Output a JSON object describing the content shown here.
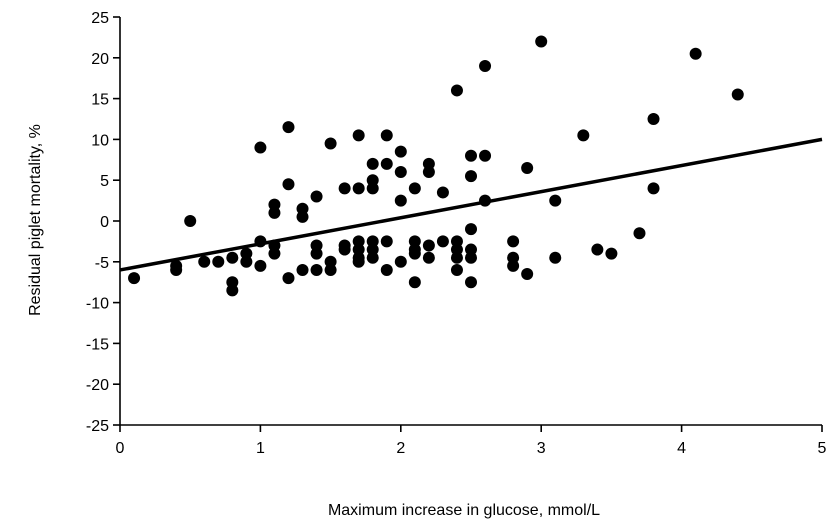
{
  "chart_data": {
    "type": "scatter",
    "title": "",
    "xlabel": "Maximum increase in glucose, mmol/L",
    "ylabel": "Residual piglet mortality, %",
    "xlim": [
      0,
      5
    ],
    "ylim": [
      -25,
      25
    ],
    "x_ticks": [
      0,
      1,
      2,
      3,
      4,
      5
    ],
    "y_ticks": [
      25,
      20,
      15,
      10,
      5,
      0,
      -5,
      -10,
      -15,
      -20,
      -25
    ],
    "grid": false,
    "legend": "none",
    "point_color": "#000000",
    "series": [
      {
        "points": [
          {
            "x": 0.1,
            "y": -7
          },
          {
            "x": 0.4,
            "y": -6
          },
          {
            "x": 0.4,
            "y": -5.5
          },
          {
            "x": 0.5,
            "y": 0
          },
          {
            "x": 0.6,
            "y": -5
          },
          {
            "x": 0.7,
            "y": -5
          },
          {
            "x": 0.8,
            "y": -4.5
          },
          {
            "x": 0.8,
            "y": -7.5
          },
          {
            "x": 0.8,
            "y": -8.5
          },
          {
            "x": 0.9,
            "y": -4
          },
          {
            "x": 0.9,
            "y": -5
          },
          {
            "x": 1.0,
            "y": 9
          },
          {
            "x": 1.0,
            "y": -2.5
          },
          {
            "x": 1.0,
            "y": -5.5
          },
          {
            "x": 1.1,
            "y": 2
          },
          {
            "x": 1.1,
            "y": 1
          },
          {
            "x": 1.1,
            "y": -3
          },
          {
            "x": 1.1,
            "y": -4
          },
          {
            "x": 1.2,
            "y": 11.5
          },
          {
            "x": 1.2,
            "y": 4.5
          },
          {
            "x": 1.2,
            "y": -7
          },
          {
            "x": 1.3,
            "y": 1.5
          },
          {
            "x": 1.3,
            "y": 0.5
          },
          {
            "x": 1.3,
            "y": -6
          },
          {
            "x": 1.4,
            "y": 3
          },
          {
            "x": 1.4,
            "y": -3
          },
          {
            "x": 1.4,
            "y": -4
          },
          {
            "x": 1.4,
            "y": -6
          },
          {
            "x": 1.5,
            "y": 9.5
          },
          {
            "x": 1.5,
            "y": -5
          },
          {
            "x": 1.5,
            "y": -6
          },
          {
            "x": 1.6,
            "y": 4
          },
          {
            "x": 1.6,
            "y": -3
          },
          {
            "x": 1.6,
            "y": -3.5
          },
          {
            "x": 1.7,
            "y": 10.5
          },
          {
            "x": 1.7,
            "y": 4
          },
          {
            "x": 1.7,
            "y": -2.5
          },
          {
            "x": 1.7,
            "y": -3.5
          },
          {
            "x": 1.7,
            "y": -4.5
          },
          {
            "x": 1.7,
            "y": -5
          },
          {
            "x": 1.8,
            "y": 7
          },
          {
            "x": 1.8,
            "y": 5
          },
          {
            "x": 1.8,
            "y": 4
          },
          {
            "x": 1.8,
            "y": -2.5
          },
          {
            "x": 1.8,
            "y": -3.5
          },
          {
            "x": 1.8,
            "y": -4.5
          },
          {
            "x": 1.9,
            "y": 10.5
          },
          {
            "x": 1.9,
            "y": 7
          },
          {
            "x": 1.9,
            "y": -2.5
          },
          {
            "x": 1.9,
            "y": -6
          },
          {
            "x": 2.0,
            "y": 8.5
          },
          {
            "x": 2.0,
            "y": 6
          },
          {
            "x": 2.0,
            "y": 2.5
          },
          {
            "x": 2.0,
            "y": -5
          },
          {
            "x": 2.1,
            "y": 4
          },
          {
            "x": 2.1,
            "y": -2.5
          },
          {
            "x": 2.1,
            "y": -3.5
          },
          {
            "x": 2.1,
            "y": -4
          },
          {
            "x": 2.1,
            "y": -7.5
          },
          {
            "x": 2.2,
            "y": 7
          },
          {
            "x": 2.2,
            "y": 6
          },
          {
            "x": 2.2,
            "y": -3
          },
          {
            "x": 2.2,
            "y": -4.5
          },
          {
            "x": 2.3,
            "y": 3.5
          },
          {
            "x": 2.3,
            "y": -2.5
          },
          {
            "x": 2.4,
            "y": 16
          },
          {
            "x": 2.4,
            "y": -2.5
          },
          {
            "x": 2.4,
            "y": -3.5
          },
          {
            "x": 2.4,
            "y": -4.5
          },
          {
            "x": 2.4,
            "y": -6
          },
          {
            "x": 2.5,
            "y": 8
          },
          {
            "x": 2.5,
            "y": 5.5
          },
          {
            "x": 2.5,
            "y": -1
          },
          {
            "x": 2.5,
            "y": -3.5
          },
          {
            "x": 2.5,
            "y": -4.5
          },
          {
            "x": 2.5,
            "y": -7.5
          },
          {
            "x": 2.6,
            "y": 19
          },
          {
            "x": 2.6,
            "y": 8
          },
          {
            "x": 2.6,
            "y": 2.5
          },
          {
            "x": 2.8,
            "y": -2.5
          },
          {
            "x": 2.8,
            "y": -4.5
          },
          {
            "x": 2.8,
            "y": -5.5
          },
          {
            "x": 2.9,
            "y": 6.5
          },
          {
            "x": 2.9,
            "y": -6.5
          },
          {
            "x": 3.0,
            "y": 22
          },
          {
            "x": 3.1,
            "y": 2.5
          },
          {
            "x": 3.1,
            "y": -4.5
          },
          {
            "x": 3.3,
            "y": 10.5
          },
          {
            "x": 3.4,
            "y": -3.5
          },
          {
            "x": 3.5,
            "y": -4
          },
          {
            "x": 3.7,
            "y": -1.5
          },
          {
            "x": 3.8,
            "y": 12.5
          },
          {
            "x": 3.8,
            "y": 4
          },
          {
            "x": 4.1,
            "y": 20.5
          },
          {
            "x": 4.4,
            "y": 15.5
          }
        ]
      }
    ],
    "regression_line": {
      "x": [
        0,
        5
      ],
      "y": [
        -6,
        10
      ]
    }
  }
}
